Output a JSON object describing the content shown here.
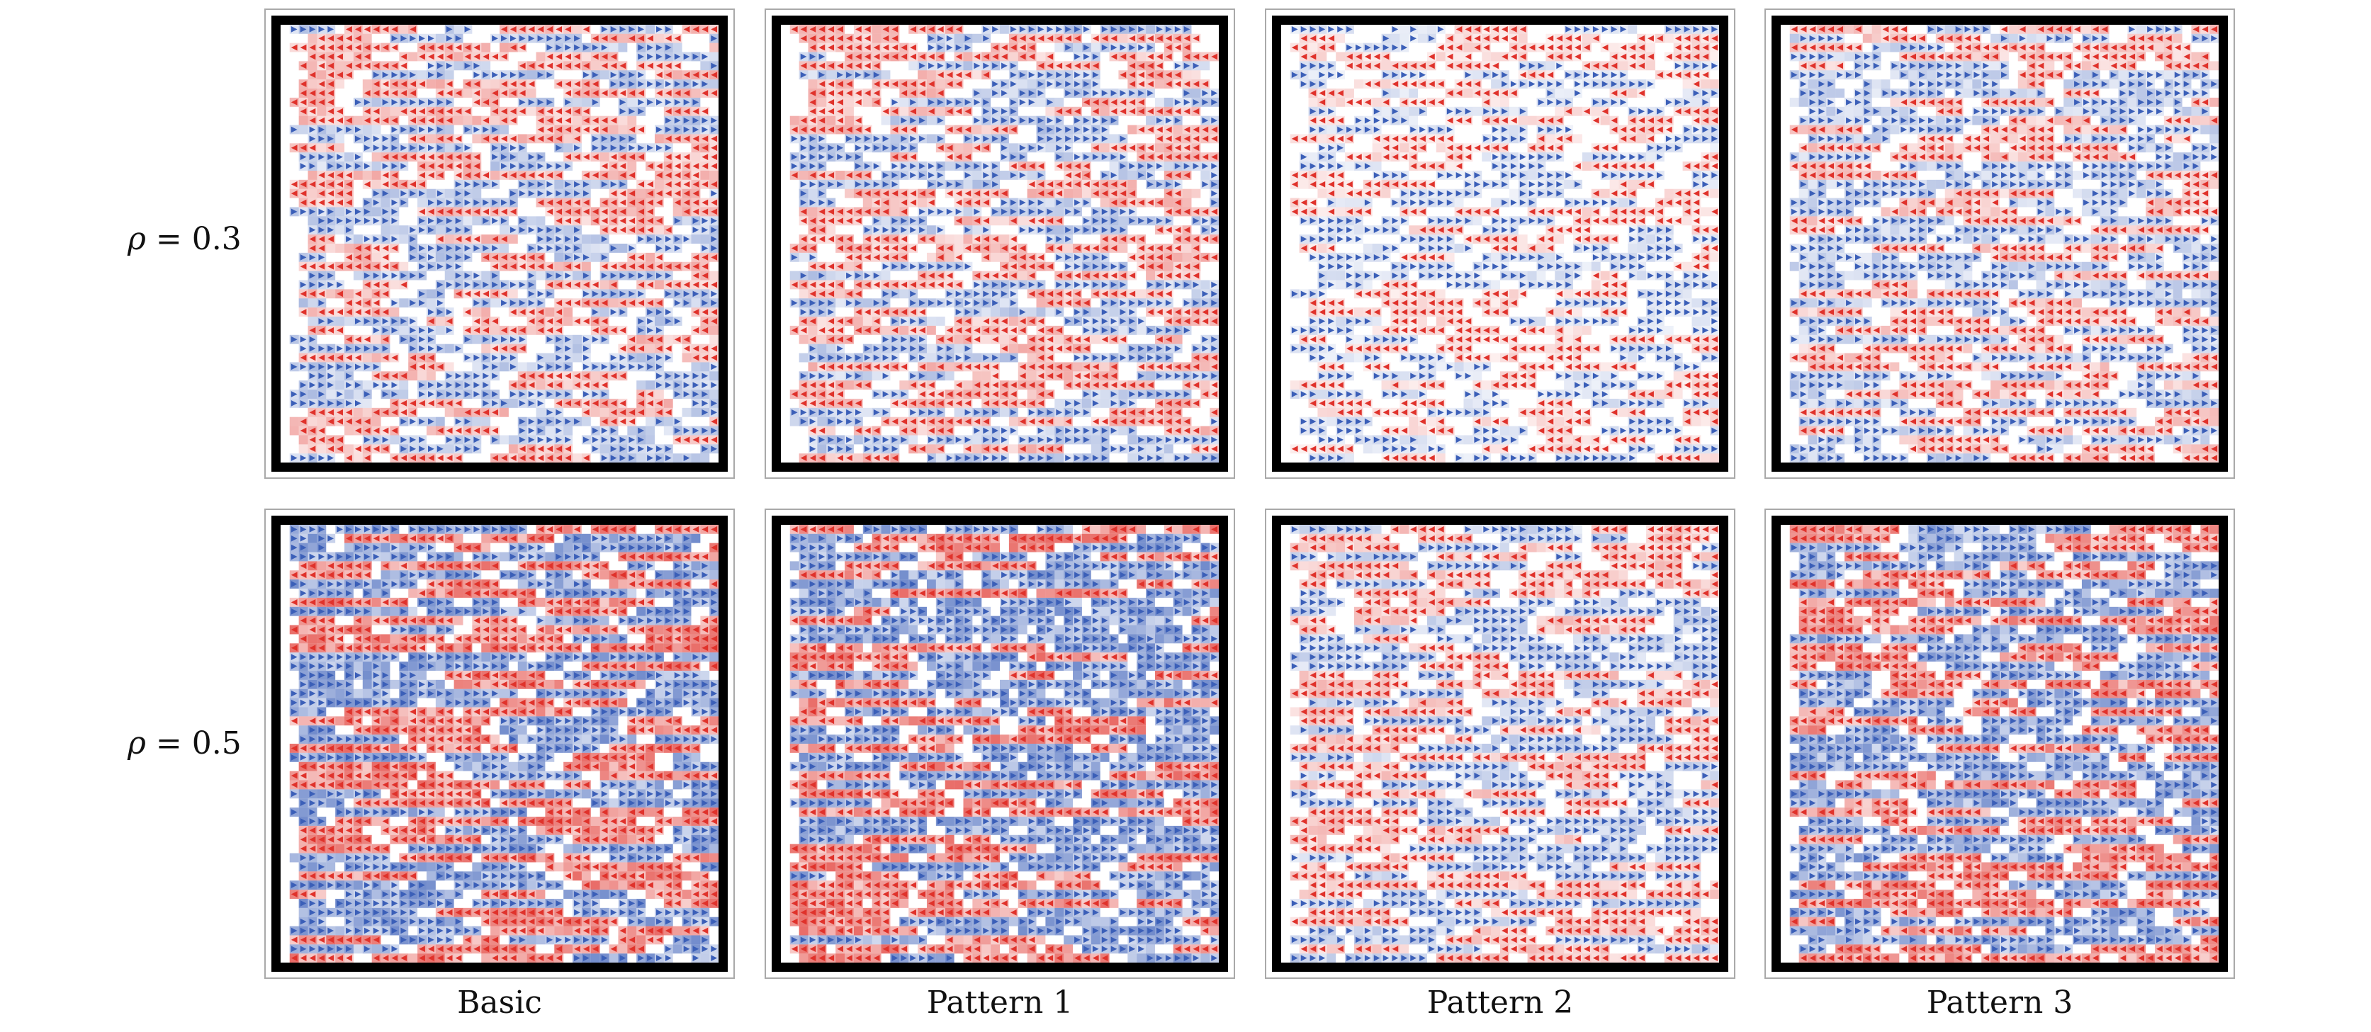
{
  "rows": [
    {
      "id": "rho-03",
      "label_symbol": "ρ",
      "label_rest": " = 0.3"
    },
    {
      "id": "rho-05",
      "label_symbol": "ρ",
      "label_rest": " = 0.5"
    }
  ],
  "columns": [
    {
      "id": "basic",
      "label": "Basic"
    },
    {
      "id": "pattern-1",
      "label": "Pattern 1"
    },
    {
      "id": "pattern-2",
      "label": "Pattern 2"
    },
    {
      "id": "pattern-3",
      "label": "Pattern 3"
    }
  ],
  "colors": {
    "right_moving": "#3b5fb8",
    "left_moving": "#e0322b",
    "wall": "#000000",
    "background": "#ffffff",
    "panel_border": "#a9a9a9"
  },
  "icons": {
    "right_moving": "right-triangle-marker-icon",
    "left_moving": "left-triangle-marker-icon"
  }
}
